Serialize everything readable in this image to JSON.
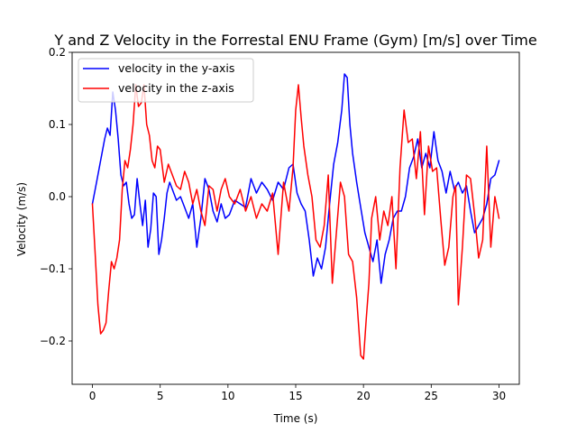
{
  "chart_data": {
    "type": "line",
    "title": "Y and Z Velocity in the Forrestal ENU Frame (Gym) [m/s] over Time",
    "xlabel": "Time (s)",
    "ylabel": "Velocity (m/s)",
    "xlim": [
      -1.5,
      31.5
    ],
    "ylim": [
      -0.26,
      0.2
    ],
    "xticks": [
      0,
      5,
      10,
      15,
      20,
      25,
      30
    ],
    "xtick_labels": [
      "0",
      "5",
      "10",
      "15",
      "20",
      "25",
      "30"
    ],
    "yticks": [
      -0.2,
      -0.1,
      0.0,
      0.1,
      0.2
    ],
    "ytick_labels": [
      "−0.2",
      "−0.1",
      "0.0",
      "0.1",
      "0.2"
    ],
    "grid": false,
    "legend_position": "upper-left",
    "series": [
      {
        "name": "velocity in the y-axis",
        "color": "#0000ff",
        "x": [
          0,
          0.3,
          0.6,
          0.9,
          1.1,
          1.3,
          1.5,
          1.7,
          1.9,
          2.1,
          2.3,
          2.5,
          2.7,
          2.9,
          3.1,
          3.3,
          3.5,
          3.7,
          3.9,
          4.1,
          4.3,
          4.5,
          4.7,
          4.9,
          5.1,
          5.3,
          5.5,
          5.7,
          5.9,
          6.2,
          6.5,
          6.8,
          7.1,
          7.4,
          7.7,
          8.0,
          8.3,
          8.6,
          8.9,
          9.2,
          9.5,
          9.8,
          10.1,
          10.5,
          10.9,
          11.3,
          11.7,
          12.1,
          12.5,
          12.9,
          13.3,
          13.7,
          14.1,
          14.5,
          14.8,
          15.1,
          15.4,
          15.7,
          16.0,
          16.3,
          16.6,
          16.9,
          17.2,
          17.5,
          17.8,
          18.1,
          18.4,
          18.6,
          18.8,
          19.0,
          19.2,
          19.5,
          19.8,
          20.1,
          20.4,
          20.7,
          21.0,
          21.3,
          21.6,
          21.9,
          22.2,
          22.5,
          22.8,
          23.1,
          23.4,
          23.7,
          24.0,
          24.3,
          24.6,
          24.9,
          25.2,
          25.5,
          25.8,
          26.1,
          26.4,
          26.7,
          27.0,
          27.3,
          27.6,
          27.9,
          28.2,
          28.5,
          28.8,
          29.1,
          29.4,
          29.7,
          30.0
        ],
        "y": [
          -0.01,
          0.02,
          0.05,
          0.08,
          0.095,
          0.085,
          0.145,
          0.12,
          0.08,
          0.03,
          0.015,
          0.02,
          -0.01,
          -0.03,
          -0.025,
          0.025,
          -0.01,
          -0.04,
          -0.005,
          -0.07,
          -0.045,
          0.005,
          0.0,
          -0.08,
          -0.06,
          -0.03,
          0.005,
          0.02,
          0.01,
          -0.005,
          0.0,
          -0.015,
          -0.03,
          -0.01,
          -0.07,
          -0.03,
          0.025,
          0.01,
          -0.02,
          -0.035,
          -0.01,
          -0.03,
          -0.025,
          -0.005,
          -0.01,
          -0.015,
          0.025,
          0.005,
          0.02,
          0.01,
          -0.005,
          0.02,
          0.01,
          0.04,
          0.045,
          0.005,
          -0.01,
          -0.02,
          -0.06,
          -0.11,
          -0.085,
          -0.1,
          -0.07,
          -0.01,
          0.045,
          0.075,
          0.12,
          0.17,
          0.165,
          0.1,
          0.06,
          0.02,
          -0.015,
          -0.05,
          -0.07,
          -0.09,
          -0.06,
          -0.12,
          -0.08,
          -0.06,
          -0.03,
          -0.02,
          -0.02,
          0.0,
          0.04,
          0.055,
          0.08,
          0.04,
          0.06,
          0.04,
          0.09,
          0.05,
          0.035,
          0.005,
          0.035,
          0.01,
          0.02,
          0.005,
          0.015,
          -0.02,
          -0.05,
          -0.04,
          -0.03,
          -0.01,
          0.025,
          0.03,
          0.05
        ]
      },
      {
        "name": "velocity in the z-axis",
        "color": "#ff0000",
        "x": [
          0,
          0.2,
          0.4,
          0.6,
          0.8,
          1.0,
          1.2,
          1.4,
          1.6,
          1.8,
          2.0,
          2.2,
          2.4,
          2.6,
          2.8,
          3.0,
          3.2,
          3.4,
          3.6,
          3.8,
          4.0,
          4.2,
          4.4,
          4.6,
          4.8,
          5.0,
          5.3,
          5.6,
          5.9,
          6.2,
          6.5,
          6.8,
          7.1,
          7.4,
          7.7,
          8.0,
          8.3,
          8.6,
          8.9,
          9.2,
          9.5,
          9.8,
          10.1,
          10.5,
          10.9,
          11.3,
          11.7,
          12.1,
          12.5,
          12.9,
          13.3,
          13.7,
          14.1,
          14.5,
          14.8,
          15.0,
          15.2,
          15.4,
          15.6,
          15.9,
          16.2,
          16.5,
          16.8,
          17.1,
          17.4,
          17.7,
          18.0,
          18.3,
          18.6,
          18.9,
          19.2,
          19.5,
          19.8,
          20.0,
          20.2,
          20.4,
          20.6,
          20.9,
          21.2,
          21.5,
          21.8,
          22.1,
          22.4,
          22.7,
          23.0,
          23.3,
          23.6,
          23.9,
          24.2,
          24.5,
          24.8,
          25.1,
          25.4,
          25.7,
          26.0,
          26.3,
          26.6,
          26.8,
          27.0,
          27.3,
          27.6,
          27.9,
          28.2,
          28.5,
          28.8,
          29.1,
          29.4,
          29.7,
          30.0
        ],
        "y": [
          -0.01,
          -0.08,
          -0.15,
          -0.19,
          -0.185,
          -0.175,
          -0.13,
          -0.09,
          -0.1,
          -0.085,
          -0.06,
          0.01,
          0.05,
          0.04,
          0.065,
          0.1,
          0.155,
          0.125,
          0.13,
          0.155,
          0.1,
          0.085,
          0.05,
          0.04,
          0.07,
          0.065,
          0.02,
          0.045,
          0.03,
          0.015,
          0.01,
          0.035,
          0.02,
          -0.01,
          0.01,
          -0.02,
          -0.04,
          0.015,
          0.01,
          -0.02,
          0.01,
          0.025,
          0.0,
          -0.01,
          0.01,
          -0.02,
          0.0,
          -0.03,
          -0.01,
          -0.02,
          0.005,
          -0.08,
          0.02,
          -0.02,
          0.04,
          0.12,
          0.155,
          0.11,
          0.07,
          0.03,
          0.0,
          -0.06,
          -0.07,
          -0.04,
          0.03,
          -0.12,
          -0.05,
          0.02,
          0.0,
          -0.08,
          -0.09,
          -0.14,
          -0.22,
          -0.225,
          -0.17,
          -0.12,
          -0.03,
          0.0,
          -0.06,
          -0.02,
          -0.04,
          0.0,
          -0.1,
          0.04,
          0.12,
          0.075,
          0.08,
          0.025,
          0.09,
          -0.025,
          0.07,
          0.035,
          0.04,
          -0.03,
          -0.095,
          -0.07,
          0.0,
          0.015,
          -0.15,
          -0.07,
          0.03,
          0.025,
          -0.025,
          -0.085,
          -0.06,
          0.07,
          -0.07,
          0.0,
          -0.03
        ]
      }
    ]
  }
}
